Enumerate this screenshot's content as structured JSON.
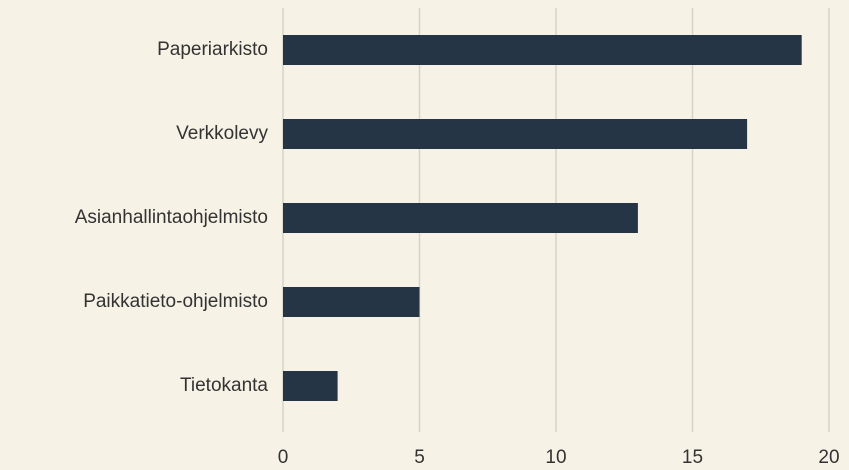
{
  "chart_data": {
    "type": "hbar",
    "categories": [
      "Paperiarkisto",
      "Verkkolevy",
      "Asianhallintaohjelmisto",
      "Paikkatieto-ohjelmisto",
      "Tietokanta"
    ],
    "values": [
      19,
      17,
      13,
      5,
      2
    ],
    "color": "#253545",
    "xlim": [
      0,
      20
    ],
    "xticks": [
      0,
      5,
      10,
      15,
      20
    ],
    "grid": true
  }
}
